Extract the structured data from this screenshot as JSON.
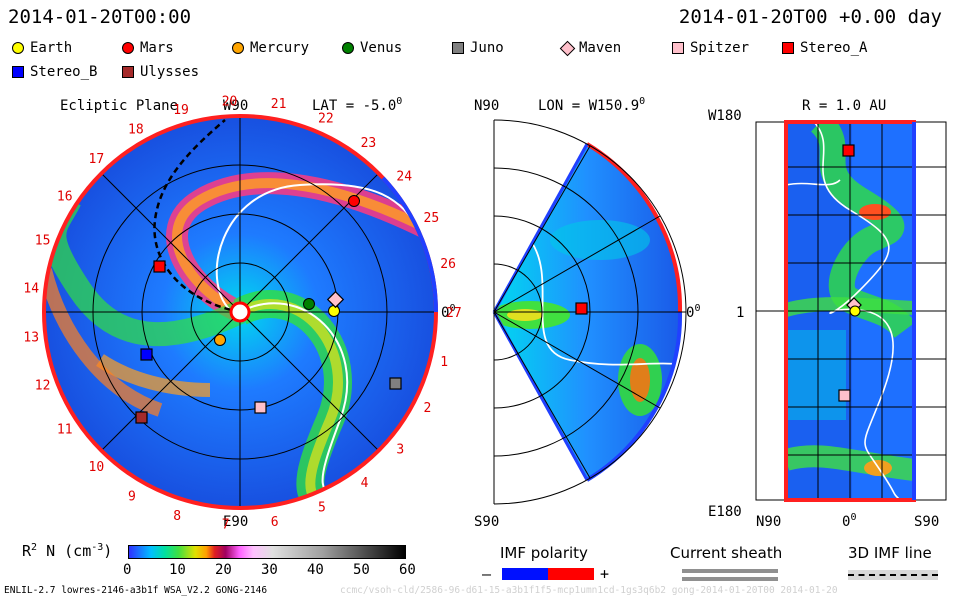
{
  "header": {
    "left_time": "2014-01-20T00:00",
    "right_time": "2014-01-20T00 +0.00 day"
  },
  "legend": [
    {
      "name": "Earth",
      "color": "#ffff00",
      "shape": "circle"
    },
    {
      "name": "Mars",
      "color": "#ff0000",
      "shape": "circle"
    },
    {
      "name": "Mercury",
      "color": "#ffa500",
      "shape": "circle"
    },
    {
      "name": "Venus",
      "color": "#008000",
      "shape": "circle"
    },
    {
      "name": "Juno",
      "color": "#808080",
      "shape": "square"
    },
    {
      "name": "Maven",
      "color": "#ffc0cb",
      "shape": "diamond"
    },
    {
      "name": "Spitzer",
      "color": "#ffc0cb",
      "shape": "square"
    },
    {
      "name": "Stereo_A",
      "color": "#ff0000",
      "shape": "square"
    },
    {
      "name": "Stereo_B",
      "color": "#0000ff",
      "shape": "square"
    },
    {
      "name": "Ulysses",
      "color": "#a52a2a",
      "shape": "square"
    }
  ],
  "panel1": {
    "title": "Ecliptic Plane",
    "top_label": "W90",
    "lat_label": "LAT = -5.0",
    "deg_sup": "0",
    "right_label": "0",
    "bottom_label": "E90",
    "carrington": [
      "1",
      "2",
      "3",
      "4",
      "5",
      "6",
      "7",
      "8",
      "9",
      "10",
      "11",
      "12",
      "13",
      "14",
      "15",
      "16",
      "17",
      "18",
      "19",
      "20",
      "21",
      "22",
      "23",
      "24",
      "25",
      "26",
      "27"
    ]
  },
  "panel2": {
    "top_label": "N90",
    "lon_label": "LON = W150.9",
    "deg_sup": "0",
    "right_label": "0",
    "bottom_label": "S90"
  },
  "panel3": {
    "title": "R = 1.0 AU",
    "left_top": "W180",
    "left_mid": "1",
    "left_bottom": "E180",
    "bottom_left": "N90",
    "bottom_mid": "0",
    "bottom_right": "S90"
  },
  "colorbar": {
    "label": "R",
    "label_sup": "2",
    "label_rest": "N (cm",
    "label_sup2": "-3",
    "label_end": ")",
    "ticks": [
      "0",
      "10",
      "20",
      "30",
      "40",
      "50",
      "60"
    ]
  },
  "imf": {
    "title": "IMF polarity",
    "minus": "–",
    "plus": "+"
  },
  "current_sheath": {
    "title": "Current sheath"
  },
  "imf_line": {
    "title": "3D IMF line"
  },
  "footer": {
    "left": "ENLIL-2.7 lowres-2146-a3b1f WSA_V2.2 GONG-2146",
    "right": "ccmc/vsoh-cld/2586-96-d61-15-a3b1f1f5-mcp1umn1cd-1gs3q6b2 gong-2014-01-20T00   2014-01-20"
  }
}
